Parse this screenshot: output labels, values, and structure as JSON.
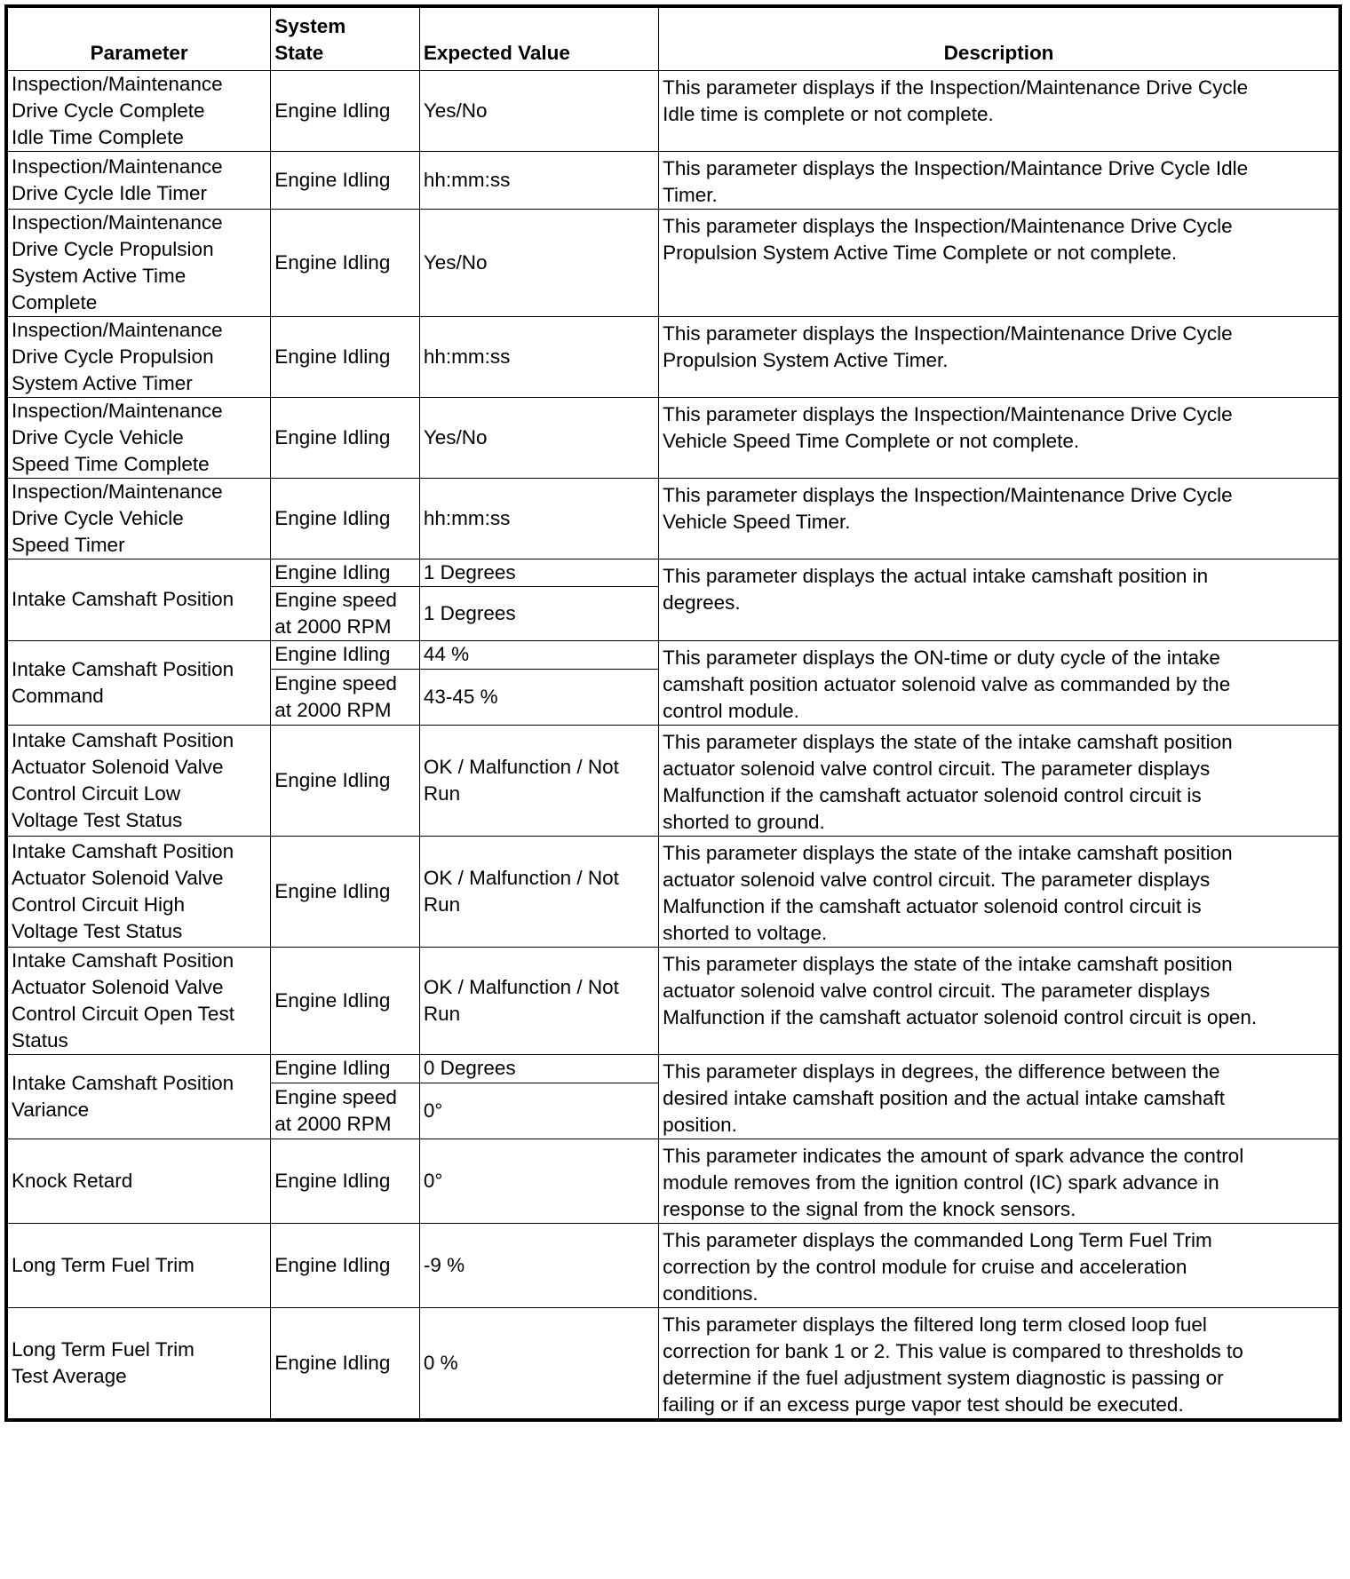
{
  "headers": {
    "parameter": "Parameter",
    "system_state": "System\nState",
    "expected_value": "Expected Value",
    "description": "Description"
  },
  "rows": [
    {
      "parameter": "Inspection/Maintenance\nDrive Cycle Complete\nIdle Time Complete",
      "states": [
        {
          "state": "Engine Idling",
          "value": "Yes/No"
        }
      ],
      "description": "This parameter displays if the Inspection/Maintenance Drive Cycle\nIdle time is complete or not complete."
    },
    {
      "parameter": "Inspection/Maintenance\nDrive Cycle Idle Timer",
      "states": [
        {
          "state": "Engine Idling",
          "value": "hh:mm:ss"
        }
      ],
      "description": "This parameter displays the Inspection/Maintance Drive Cycle Idle\nTimer."
    },
    {
      "parameter": "Inspection/Maintenance\nDrive Cycle Propulsion\nSystem Active Time\nComplete",
      "states": [
        {
          "state": "Engine Idling",
          "value": "Yes/No"
        }
      ],
      "description": "This parameter displays the Inspection/Maintenance Drive Cycle\nPropulsion System Active Time Complete or not complete."
    },
    {
      "parameter": "Inspection/Maintenance\nDrive Cycle Propulsion\nSystem Active Timer",
      "states": [
        {
          "state": "Engine Idling",
          "value": "hh:mm:ss"
        }
      ],
      "description": "This parameter displays the Inspection/Maintenance Drive Cycle\nPropulsion System Active Timer."
    },
    {
      "parameter": "Inspection/Maintenance\nDrive Cycle Vehicle\nSpeed Time Complete",
      "states": [
        {
          "state": "Engine Idling",
          "value": "Yes/No"
        }
      ],
      "description": "This parameter displays the Inspection/Maintenance Drive Cycle\nVehicle Speed Time Complete or not complete."
    },
    {
      "parameter": "Inspection/Maintenance\nDrive Cycle Vehicle\nSpeed Timer",
      "states": [
        {
          "state": "Engine Idling",
          "value": "hh:mm:ss"
        }
      ],
      "description": "This parameter displays the Inspection/Maintenance Drive Cycle\nVehicle Speed Timer."
    },
    {
      "parameter": "Intake Camshaft Position",
      "states": [
        {
          "state": "Engine Idling",
          "value": "1 Degrees"
        },
        {
          "state": "Engine speed\nat 2000 RPM",
          "value": "1 Degrees"
        }
      ],
      "description": "This parameter displays the actual intake camshaft position in\ndegrees."
    },
    {
      "parameter": "Intake Camshaft Position\nCommand",
      "states": [
        {
          "state": "Engine Idling",
          "value": "44 %"
        },
        {
          "state": "Engine speed\nat 2000 RPM",
          "value": "43-45 %"
        }
      ],
      "description": "This parameter displays the ON-time or duty cycle of the intake\ncamshaft position actuator solenoid valve as commanded by the\ncontrol module."
    },
    {
      "parameter": "Intake Camshaft Position\nActuator Solenoid Valve\nControl Circuit Low\nVoltage Test Status",
      "states": [
        {
          "state": "Engine Idling",
          "value": "OK / Malfunction / Not\nRun"
        }
      ],
      "description": "This parameter displays the state of the intake camshaft position\nactuator solenoid valve control circuit. The parameter displays\nMalfunction if the camshaft actuator solenoid control circuit is\nshorted to ground."
    },
    {
      "parameter": "Intake Camshaft Position\nActuator Solenoid Valve\nControl Circuit High\nVoltage Test Status",
      "states": [
        {
          "state": "Engine Idling",
          "value": "OK / Malfunction / Not\nRun"
        }
      ],
      "description": "This parameter displays the state of the intake camshaft position\nactuator solenoid valve control circuit. The parameter displays\nMalfunction if the camshaft actuator solenoid control circuit is\nshorted to voltage."
    },
    {
      "parameter": "Intake Camshaft Position\nActuator Solenoid Valve\nControl Circuit Open Test\nStatus",
      "states": [
        {
          "state": "Engine Idling",
          "value": "OK / Malfunction / Not\nRun"
        }
      ],
      "description": "This parameter displays the state of the intake camshaft position\nactuator solenoid valve control circuit. The parameter displays\nMalfunction if the camshaft actuator solenoid control circuit is open."
    },
    {
      "parameter": "Intake Camshaft Position\nVariance",
      "states": [
        {
          "state": "Engine Idling",
          "value": "0 Degrees"
        },
        {
          "state": "Engine speed\nat 2000 RPM",
          "value": "0°"
        }
      ],
      "description": "This parameter displays in degrees, the difference between the\ndesired intake camshaft position and the actual intake camshaft\nposition."
    },
    {
      "parameter": "Knock Retard",
      "states": [
        {
          "state": "Engine Idling",
          "value": "0°"
        }
      ],
      "description": "This parameter indicates the amount of spark advance the control\nmodule removes from the ignition control (IC) spark advance in\nresponse to the signal from the knock sensors."
    },
    {
      "parameter": "Long Term Fuel Trim",
      "states": [
        {
          "state": "Engine Idling",
          "value": "-9 %"
        }
      ],
      "description": "This parameter displays the commanded Long Term Fuel Trim\ncorrection by the control module for cruise and acceleration\nconditions."
    },
    {
      "parameter": "Long Term Fuel Trim\nTest Average",
      "states": [
        {
          "state": "Engine Idling",
          "value": "0 %"
        }
      ],
      "description": "This parameter displays the filtered long term closed loop fuel\ncorrection for bank 1 or 2. This value is compared to thresholds to\ndetermine if the fuel adjustment system diagnostic is passing or\nfailing or if an excess purge vapor test should be executed."
    }
  ]
}
